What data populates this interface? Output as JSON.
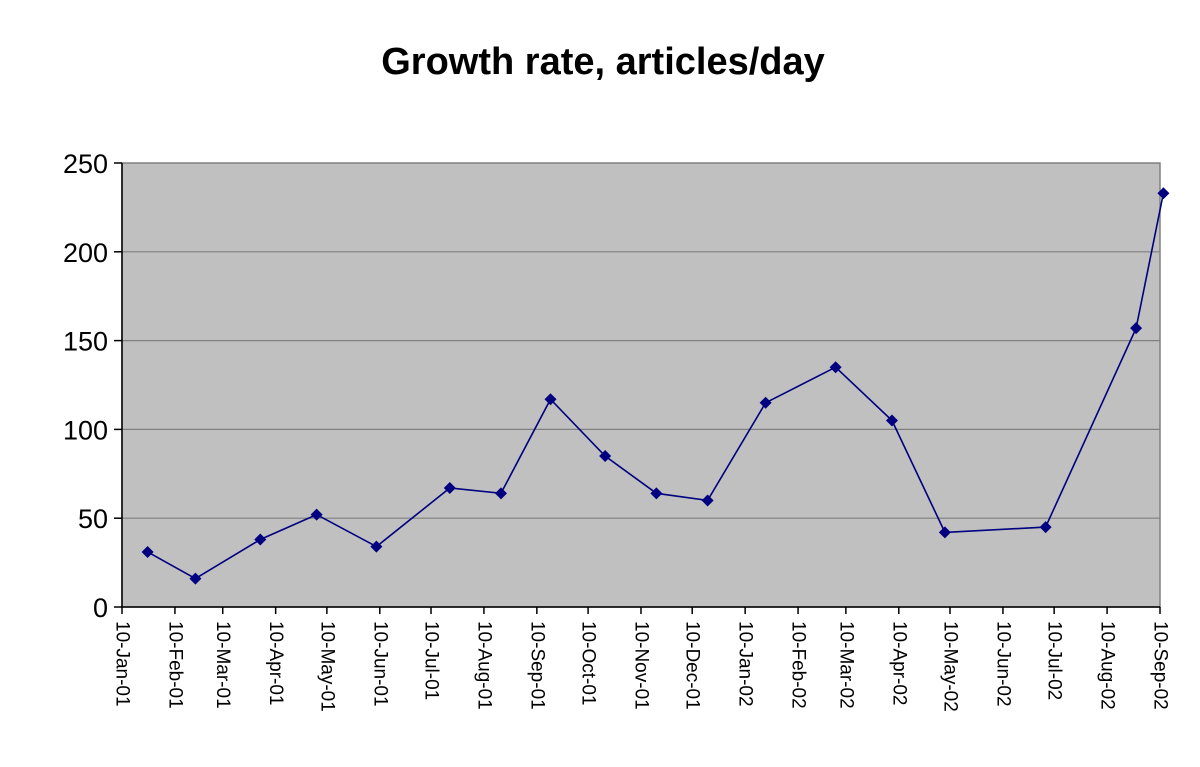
{
  "chart_data": {
    "type": "line",
    "title": "Growth rate, articles/day",
    "xlabel": "",
    "ylabel": "",
    "x_axis_kind": "date",
    "xlim": [
      "2001-01-10",
      "2002-09-10"
    ],
    "ylim": [
      0,
      250
    ],
    "y_ticks": [
      0,
      50,
      100,
      150,
      200,
      250
    ],
    "x_ticks": [
      {
        "date": "2001-01-10",
        "label": "10-Jan-01"
      },
      {
        "date": "2001-02-10",
        "label": "10-Feb-01"
      },
      {
        "date": "2001-03-10",
        "label": "10-Mar-01"
      },
      {
        "date": "2001-04-10",
        "label": "10-Apr-01"
      },
      {
        "date": "2001-05-10",
        "label": "10-May-01"
      },
      {
        "date": "2001-06-10",
        "label": "10-Jun-01"
      },
      {
        "date": "2001-07-10",
        "label": "10-Jul-01"
      },
      {
        "date": "2001-08-10",
        "label": "10-Aug-01"
      },
      {
        "date": "2001-09-10",
        "label": "10-Sep-01"
      },
      {
        "date": "2001-10-10",
        "label": "10-Oct-01"
      },
      {
        "date": "2001-11-10",
        "label": "10-Nov-01"
      },
      {
        "date": "2001-12-10",
        "label": "10-Dec-01"
      },
      {
        "date": "2002-01-10",
        "label": "10-Jan-02"
      },
      {
        "date": "2002-02-10",
        "label": "10-Feb-02"
      },
      {
        "date": "2002-03-10",
        "label": "10-Mar-02"
      },
      {
        "date": "2002-04-10",
        "label": "10-Apr-02"
      },
      {
        "date": "2002-05-10",
        "label": "10-May-02"
      },
      {
        "date": "2002-06-10",
        "label": "10-Jun-02"
      },
      {
        "date": "2002-07-10",
        "label": "10-Jul-02"
      },
      {
        "date": "2002-08-10",
        "label": "10-Aug-02"
      },
      {
        "date": "2002-09-10",
        "label": "10-Sep-02"
      }
    ],
    "grid": true,
    "legend": "none",
    "plot_background": "#c0c0c0",
    "series": [
      {
        "color": "#000080",
        "marker": "diamond",
        "points": [
          {
            "x": "2001-01-25",
            "y": 31
          },
          {
            "x": "2001-02-22",
            "y": 16
          },
          {
            "x": "2001-04-01",
            "y": 38
          },
          {
            "x": "2001-05-04",
            "y": 52
          },
          {
            "x": "2001-06-08",
            "y": 34
          },
          {
            "x": "2001-07-21",
            "y": 67
          },
          {
            "x": "2001-08-20",
            "y": 64
          },
          {
            "x": "2001-09-18",
            "y": 117
          },
          {
            "x": "2001-10-20",
            "y": 85
          },
          {
            "x": "2001-11-19",
            "y": 64
          },
          {
            "x": "2001-12-19",
            "y": 60
          },
          {
            "x": "2002-01-22",
            "y": 115
          },
          {
            "x": "2002-03-04",
            "y": 135
          },
          {
            "x": "2002-04-06",
            "y": 105
          },
          {
            "x": "2002-05-07",
            "y": 42
          },
          {
            "x": "2002-07-05",
            "y": 45
          },
          {
            "x": "2002-08-27",
            "y": 157
          },
          {
            "x": "2002-09-12",
            "y": 233
          }
        ]
      }
    ]
  }
}
